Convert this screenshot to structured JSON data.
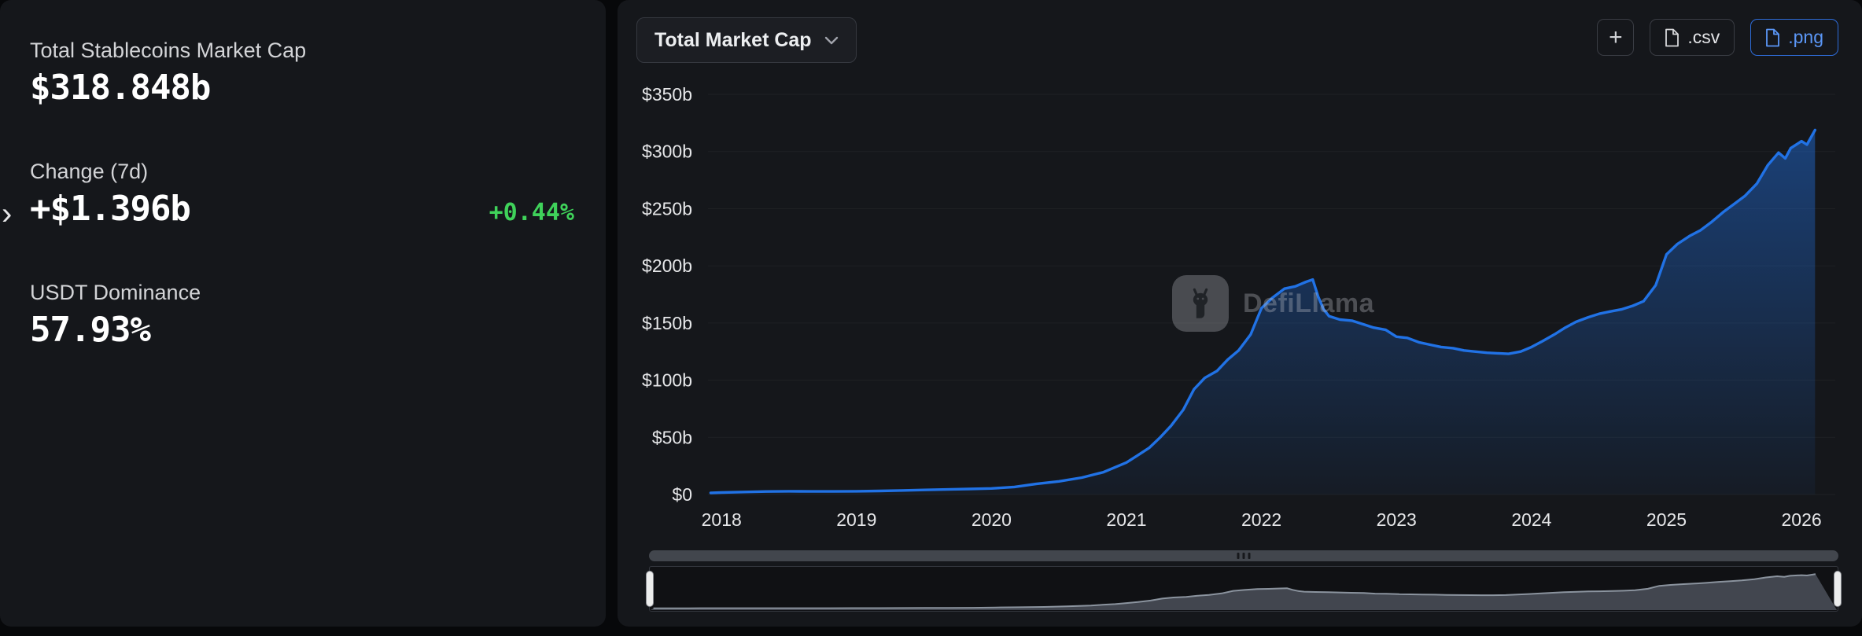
{
  "colors": {
    "accent_blue": "#2172e5",
    "positive_green": "#3fd25a",
    "png_button_blue": "#5b97f7"
  },
  "icons": {
    "expand_chevron": "›"
  },
  "left_panel": {
    "stats": [
      {
        "label": "Total Stablecoins Market Cap",
        "value": "$318.848b"
      },
      {
        "label": "Change (7d)",
        "value": "+$1.396b",
        "pct": "+0.44%"
      },
      {
        "label": "USDT Dominance",
        "value": "57.93%"
      }
    ]
  },
  "toolbar": {
    "dropdown_label": "Total Market Cap",
    "add_button_label": "+",
    "csv_button_label": ".csv",
    "png_button_label": ".png"
  },
  "watermark": {
    "text": "DefiLlama"
  },
  "chart_data": {
    "type": "area",
    "title": "Total Market Cap",
    "ylabel": "",
    "xlabel": "",
    "legend": "none",
    "grid": false,
    "line_color": "#2172e5",
    "ylim": [
      0,
      350
    ],
    "y_ticks": [
      "$0",
      "$50b",
      "$100b",
      "$150b",
      "$200b",
      "$250b",
      "$300b",
      "$350b"
    ],
    "y_tick_values": [
      0,
      50,
      100,
      150,
      200,
      250,
      300,
      350
    ],
    "x_ticks": [
      2018,
      2019,
      2020,
      2021,
      2022,
      2023,
      2024,
      2025,
      2026
    ],
    "x_domain": [
      2017.9,
      2026.25
    ],
    "points": [
      [
        2017.92,
        1.4
      ],
      [
        2018.0,
        1.7
      ],
      [
        2018.17,
        2.2
      ],
      [
        2018.33,
        2.6
      ],
      [
        2018.5,
        2.8
      ],
      [
        2018.67,
        2.7
      ],
      [
        2018.83,
        2.7
      ],
      [
        2019.0,
        2.8
      ],
      [
        2019.17,
        3.1
      ],
      [
        2019.33,
        3.5
      ],
      [
        2019.5,
        4.0
      ],
      [
        2019.67,
        4.4
      ],
      [
        2019.83,
        4.8
      ],
      [
        2020.0,
        5.3
      ],
      [
        2020.17,
        6.6
      ],
      [
        2020.33,
        9.2
      ],
      [
        2020.5,
        11.5
      ],
      [
        2020.67,
        14.8
      ],
      [
        2020.83,
        19.5
      ],
      [
        2021.0,
        28
      ],
      [
        2021.08,
        34
      ],
      [
        2021.17,
        41
      ],
      [
        2021.25,
        50
      ],
      [
        2021.33,
        60
      ],
      [
        2021.42,
        74
      ],
      [
        2021.5,
        92
      ],
      [
        2021.58,
        102
      ],
      [
        2021.67,
        108
      ],
      [
        2021.75,
        118
      ],
      [
        2021.83,
        126
      ],
      [
        2021.92,
        140
      ],
      [
        2022.0,
        163
      ],
      [
        2022.08,
        172
      ],
      [
        2022.17,
        180
      ],
      [
        2022.25,
        182
      ],
      [
        2022.33,
        186
      ],
      [
        2022.38,
        188
      ],
      [
        2022.42,
        173
      ],
      [
        2022.46,
        162
      ],
      [
        2022.5,
        156
      ],
      [
        2022.58,
        153
      ],
      [
        2022.67,
        152
      ],
      [
        2022.75,
        149
      ],
      [
        2022.83,
        146
      ],
      [
        2022.92,
        144
      ],
      [
        2023.0,
        138
      ],
      [
        2023.08,
        137
      ],
      [
        2023.17,
        133
      ],
      [
        2023.25,
        131
      ],
      [
        2023.33,
        129
      ],
      [
        2023.42,
        128
      ],
      [
        2023.5,
        126
      ],
      [
        2023.58,
        125
      ],
      [
        2023.67,
        124
      ],
      [
        2023.75,
        123.5
      ],
      [
        2023.83,
        123
      ],
      [
        2023.92,
        125
      ],
      [
        2024.0,
        129
      ],
      [
        2024.08,
        134
      ],
      [
        2024.17,
        140
      ],
      [
        2024.25,
        146
      ],
      [
        2024.33,
        151
      ],
      [
        2024.42,
        155
      ],
      [
        2024.5,
        158
      ],
      [
        2024.58,
        160
      ],
      [
        2024.67,
        162
      ],
      [
        2024.75,
        165
      ],
      [
        2024.83,
        169
      ],
      [
        2024.92,
        183
      ],
      [
        2025.0,
        210
      ],
      [
        2025.08,
        219
      ],
      [
        2025.17,
        226
      ],
      [
        2025.25,
        231
      ],
      [
        2025.33,
        238
      ],
      [
        2025.42,
        247
      ],
      [
        2025.5,
        254
      ],
      [
        2025.58,
        261
      ],
      [
        2025.67,
        272
      ],
      [
        2025.75,
        288
      ],
      [
        2025.83,
        299
      ],
      [
        2025.88,
        294
      ],
      [
        2025.92,
        303
      ],
      [
        2026.0,
        309
      ],
      [
        2026.04,
        306
      ],
      [
        2026.1,
        318.8
      ]
    ]
  }
}
